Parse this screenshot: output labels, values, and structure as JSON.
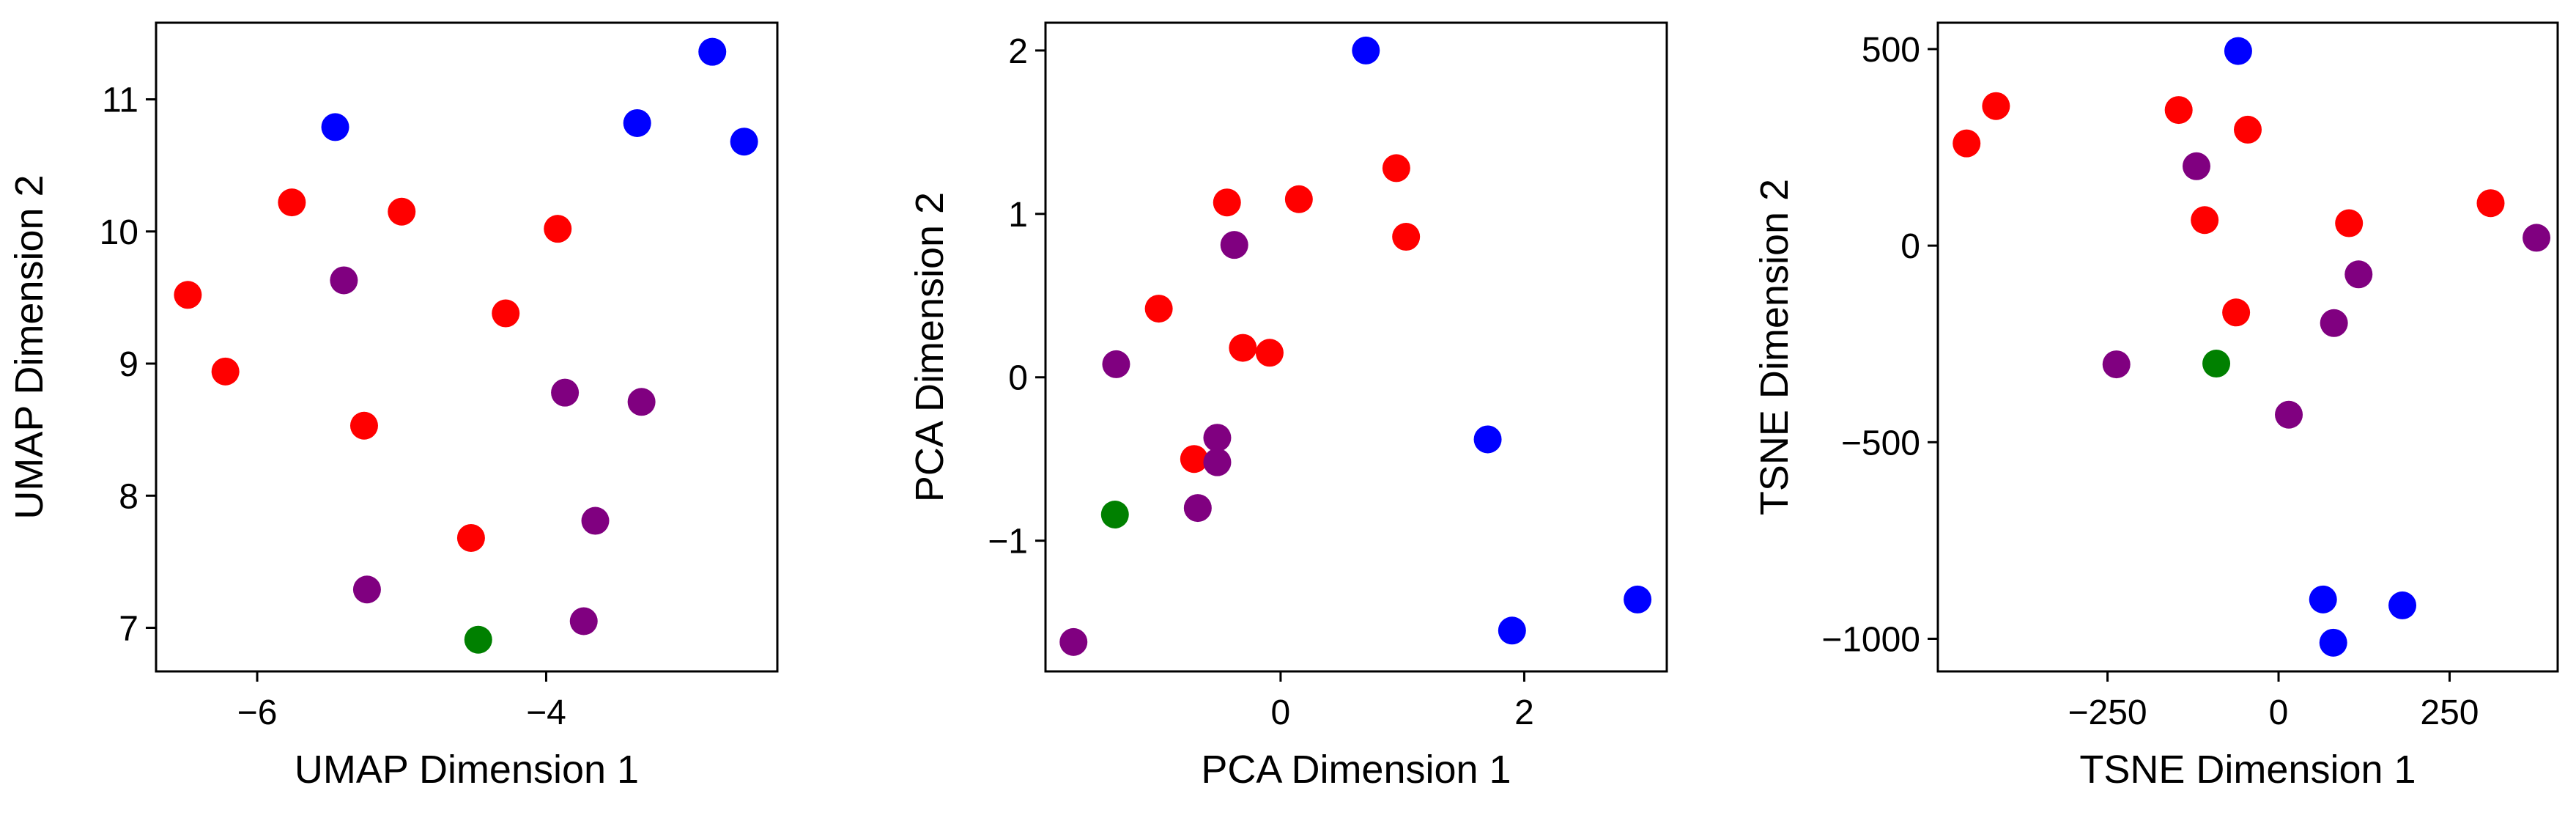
{
  "colors": {
    "red": "#ff0000",
    "blue": "#0000ff",
    "purple": "#800080",
    "green": "#008000"
  },
  "chart_data": [
    {
      "type": "scatter",
      "xlabel": "UMAP Dimension 1",
      "ylabel": "UMAP Dimension 2",
      "xlim": [
        -6.7,
        -2.4
      ],
      "ylim": [
        6.67,
        11.58
      ],
      "xticks": [
        -6,
        -4
      ],
      "xtick_labels": [
        "−6",
        "−4"
      ],
      "yticks": [
        7,
        8,
        9,
        10,
        11
      ],
      "ytick_labels": [
        "7",
        "8",
        "9",
        "10",
        "11"
      ],
      "grid": false,
      "points": [
        {
          "x": -6.48,
          "y": 9.52,
          "color": "red"
        },
        {
          "x": -6.22,
          "y": 8.94,
          "color": "red"
        },
        {
          "x": -5.76,
          "y": 10.22,
          "color": "red"
        },
        {
          "x": -5.0,
          "y": 10.15,
          "color": "red"
        },
        {
          "x": -5.26,
          "y": 8.53,
          "color": "red"
        },
        {
          "x": -4.28,
          "y": 9.38,
          "color": "red"
        },
        {
          "x": -3.92,
          "y": 10.02,
          "color": "red"
        },
        {
          "x": -4.52,
          "y": 7.68,
          "color": "red"
        },
        {
          "x": -5.46,
          "y": 10.79,
          "color": "blue"
        },
        {
          "x": -3.37,
          "y": 10.82,
          "color": "blue"
        },
        {
          "x": -2.85,
          "y": 11.36,
          "color": "blue"
        },
        {
          "x": -2.63,
          "y": 10.68,
          "color": "blue"
        },
        {
          "x": -5.4,
          "y": 9.63,
          "color": "purple"
        },
        {
          "x": -5.24,
          "y": 7.29,
          "color": "purple"
        },
        {
          "x": -3.87,
          "y": 8.78,
          "color": "purple"
        },
        {
          "x": -3.34,
          "y": 8.71,
          "color": "purple"
        },
        {
          "x": -3.66,
          "y": 7.81,
          "color": "purple"
        },
        {
          "x": -3.74,
          "y": 7.05,
          "color": "purple"
        },
        {
          "x": -4.47,
          "y": 6.91,
          "color": "green"
        }
      ]
    },
    {
      "type": "scatter",
      "xlabel": "PCA Dimension 1",
      "ylabel": "PCA Dimension 2",
      "xlim": [
        -1.93,
        3.17
      ],
      "ylim": [
        -1.8,
        2.17
      ],
      "xticks": [
        0,
        2
      ],
      "xtick_labels": [
        "0",
        "2"
      ],
      "yticks": [
        -1,
        0,
        1,
        2
      ],
      "ytick_labels": [
        "−1",
        "0",
        "1",
        "2"
      ],
      "grid": false,
      "points": [
        {
          "x": -1.0,
          "y": 0.42,
          "color": "red"
        },
        {
          "x": -0.44,
          "y": 1.07,
          "color": "red"
        },
        {
          "x": 0.15,
          "y": 1.09,
          "color": "red"
        },
        {
          "x": 0.95,
          "y": 1.28,
          "color": "red"
        },
        {
          "x": 1.03,
          "y": 0.86,
          "color": "red"
        },
        {
          "x": -0.31,
          "y": 0.18,
          "color": "red"
        },
        {
          "x": -0.09,
          "y": 0.15,
          "color": "red"
        },
        {
          "x": -0.71,
          "y": -0.5,
          "color": "red"
        },
        {
          "x": 0.7,
          "y": 2.0,
          "color": "blue"
        },
        {
          "x": 1.7,
          "y": -0.38,
          "color": "blue"
        },
        {
          "x": 1.9,
          "y": -1.55,
          "color": "blue"
        },
        {
          "x": 2.93,
          "y": -1.36,
          "color": "blue"
        },
        {
          "x": -0.38,
          "y": 0.81,
          "color": "purple"
        },
        {
          "x": -1.35,
          "y": 0.08,
          "color": "purple"
        },
        {
          "x": -0.52,
          "y": -0.37,
          "color": "purple"
        },
        {
          "x": -0.52,
          "y": -0.52,
          "color": "purple"
        },
        {
          "x": -0.68,
          "y": -0.8,
          "color": "purple"
        },
        {
          "x": -1.7,
          "y": -1.62,
          "color": "purple"
        },
        {
          "x": -1.36,
          "y": -0.84,
          "color": "green"
        }
      ]
    },
    {
      "type": "scatter",
      "xlabel": "TSNE Dimension 1",
      "ylabel": "TSNE Dimension 2",
      "xlim": [
        -498,
        408
      ],
      "ylim": [
        -1083,
        567
      ],
      "xticks": [
        -250,
        0,
        250
      ],
      "xtick_labels": [
        "−250",
        "0",
        "250"
      ],
      "yticks": [
        -1000,
        -500,
        0,
        500
      ],
      "ytick_labels": [
        "−1000",
        "−500",
        "0",
        "500"
      ],
      "grid": false,
      "points": [
        {
          "x": -456,
          "y": 260,
          "color": "red"
        },
        {
          "x": -413,
          "y": 355,
          "color": "red"
        },
        {
          "x": -146,
          "y": 345,
          "color": "red"
        },
        {
          "x": -45,
          "y": 295,
          "color": "red"
        },
        {
          "x": -108,
          "y": 65,
          "color": "red"
        },
        {
          "x": 103,
          "y": 57,
          "color": "red"
        },
        {
          "x": 310,
          "y": 108,
          "color": "red"
        },
        {
          "x": -62,
          "y": -170,
          "color": "red"
        },
        {
          "x": -59,
          "y": 495,
          "color": "blue"
        },
        {
          "x": 65,
          "y": -900,
          "color": "blue"
        },
        {
          "x": 80,
          "y": -1010,
          "color": "blue"
        },
        {
          "x": 181,
          "y": -915,
          "color": "blue"
        },
        {
          "x": -120,
          "y": 202,
          "color": "purple"
        },
        {
          "x": 117,
          "y": -73,
          "color": "purple"
        },
        {
          "x": 377,
          "y": 20,
          "color": "purple"
        },
        {
          "x": -237,
          "y": -302,
          "color": "purple"
        },
        {
          "x": 81,
          "y": -197,
          "color": "purple"
        },
        {
          "x": 15,
          "y": -430,
          "color": "purple"
        },
        {
          "x": -91,
          "y": -300,
          "color": "green"
        }
      ]
    }
  ]
}
